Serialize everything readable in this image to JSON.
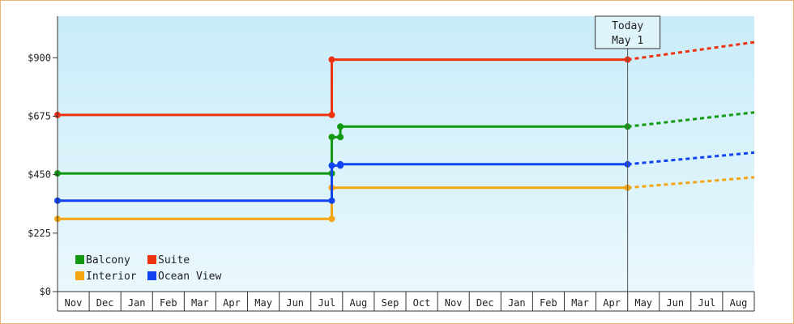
{
  "chart_data": {
    "type": "line",
    "step": true,
    "y_tick_labels": [
      "$0",
      "$225",
      "$450",
      "$675",
      "$900"
    ],
    "y_ticks": [
      0,
      225,
      450,
      675,
      900
    ],
    "ylim": [
      0,
      1060
    ],
    "x_tick_labels": [
      "Nov",
      "Dec",
      "Jan",
      "Feb",
      "Mar",
      "Apr",
      "May",
      "Jun",
      "Jul",
      "Aug",
      "Sep",
      "Oct",
      "Nov",
      "Dec",
      "Jan",
      "Feb",
      "Mar",
      "Apr",
      "May",
      "Jun",
      "Jul",
      "Aug"
    ],
    "xlim": [
      0,
      22
    ],
    "grid": false,
    "legend_position": "bottom-left",
    "today": {
      "line1": "Today",
      "line2": "May 1",
      "x": 18.0
    },
    "series": [
      {
        "name": "Balcony",
        "color": "#119911",
        "points": [
          [
            0.0,
            455
          ],
          [
            8.66,
            455
          ],
          [
            8.66,
            595
          ],
          [
            8.93,
            595
          ],
          [
            8.93,
            635
          ],
          [
            18.0,
            635
          ]
        ],
        "markers": [
          [
            0.0,
            455
          ],
          [
            8.66,
            455
          ],
          [
            8.66,
            595
          ],
          [
            8.93,
            595
          ],
          [
            8.93,
            635
          ],
          [
            18.0,
            635
          ]
        ],
        "forecast": [
          [
            18.0,
            635
          ],
          [
            22.0,
            690
          ]
        ]
      },
      {
        "name": "Suite",
        "color": "#ee3311",
        "points": [
          [
            0.0,
            680
          ],
          [
            8.66,
            680
          ],
          [
            8.66,
            893
          ],
          [
            18.0,
            893
          ]
        ],
        "markers": [
          [
            0.0,
            680
          ],
          [
            8.66,
            680
          ],
          [
            8.66,
            893
          ],
          [
            18.0,
            893
          ]
        ],
        "forecast": [
          [
            18.0,
            893
          ],
          [
            22.0,
            960
          ]
        ]
      },
      {
        "name": "Interior",
        "color": "#f5a511",
        "points": [
          [
            0.0,
            280
          ],
          [
            8.66,
            280
          ],
          [
            8.66,
            400
          ],
          [
            18.0,
            400
          ]
        ],
        "markers": [
          [
            0.0,
            280
          ],
          [
            8.66,
            280
          ],
          [
            8.66,
            400
          ],
          [
            18.0,
            400
          ]
        ],
        "forecast": [
          [
            18.0,
            400
          ],
          [
            22.0,
            440
          ]
        ]
      },
      {
        "name": "Ocean View",
        "color": "#1144ee",
        "points": [
          [
            0.0,
            350
          ],
          [
            8.66,
            350
          ],
          [
            8.66,
            485
          ],
          [
            8.93,
            485
          ],
          [
            8.93,
            490
          ],
          [
            18.0,
            490
          ]
        ],
        "markers": [
          [
            0.0,
            350
          ],
          [
            8.66,
            350
          ],
          [
            8.66,
            485
          ],
          [
            8.93,
            485
          ],
          [
            8.93,
            490
          ],
          [
            18.0,
            490
          ]
        ],
        "forecast": [
          [
            18.0,
            490
          ],
          [
            22.0,
            535
          ]
        ]
      }
    ],
    "legend_order": [
      "Balcony",
      "Suite",
      "Interior",
      "Ocean View"
    ]
  }
}
